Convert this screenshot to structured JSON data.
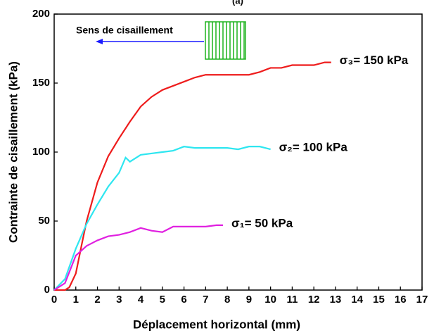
{
  "chart_data": {
    "type": "line",
    "title": "(a)",
    "x_label": "Déplacement horizontal (mm)",
    "y_label": "Contrainte de cisaillement (kPa)",
    "annotation": "Sens de cisaillement",
    "xlim": [
      0,
      17
    ],
    "xticks": [
      0,
      1,
      2,
      3,
      4,
      5,
      6,
      7,
      8,
      9,
      10,
      11,
      12,
      13,
      14,
      15,
      16,
      17
    ],
    "ylim": [
      0,
      200
    ],
    "yticks": [
      0,
      50,
      100,
      150,
      200
    ],
    "series": [
      {
        "name": "σ₃= 150 kPa",
        "color": "#ee1c1c",
        "x": [
          0,
          0.5,
          0.7,
          1,
          1.3,
          1.5,
          2,
          2.5,
          3,
          3.5,
          4,
          4.5,
          5,
          5.5,
          6,
          6.5,
          7,
          7.5,
          8,
          8.5,
          9,
          9.5,
          10,
          10.5,
          11,
          11.5,
          12,
          12.5,
          12.8
        ],
        "values": [
          0,
          0,
          2,
          12,
          35,
          50,
          78,
          97,
          110,
          122,
          133,
          140,
          145,
          148,
          151,
          154,
          156,
          156,
          156,
          156,
          156,
          158,
          161,
          161,
          163,
          163,
          163,
          165,
          165
        ]
      },
      {
        "name": "σ₂= 100 kPa",
        "color": "#2ee6f0",
        "x": [
          0,
          0.5,
          1,
          1.5,
          2,
          2.5,
          3,
          3.3,
          3.5,
          4,
          4.5,
          5,
          5.5,
          6,
          6.5,
          7,
          7.5,
          8,
          8.5,
          9,
          9.5,
          10
        ],
        "values": [
          0,
          8,
          30,
          48,
          62,
          75,
          85,
          96,
          93,
          98,
          99,
          100,
          101,
          104,
          103,
          103,
          103,
          103,
          102,
          104,
          104,
          102
        ]
      },
      {
        "name": "σ₁= 50 kPa",
        "color": "#e020e0",
        "x": [
          0,
          0.5,
          1,
          1.5,
          2,
          2.5,
          3,
          3.5,
          4,
          4.5,
          5,
          5.5,
          6,
          6.5,
          7,
          7.5,
          7.8
        ],
        "values": [
          0,
          5,
          25,
          32,
          36,
          39,
          40,
          42,
          45,
          43,
          42,
          46,
          46,
          46,
          46,
          47,
          47
        ]
      }
    ]
  }
}
